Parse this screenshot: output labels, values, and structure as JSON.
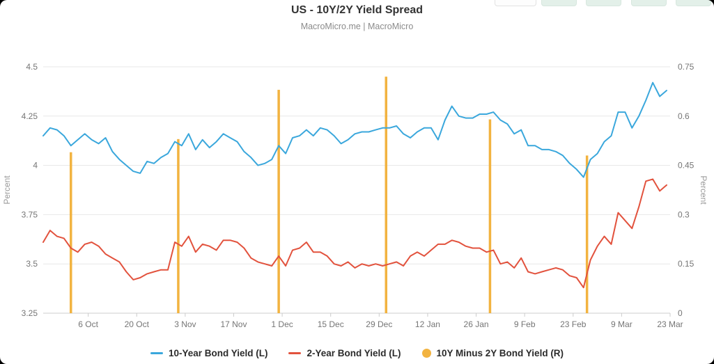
{
  "chart_data": {
    "type": "line",
    "title": "US - 10Y/2Y Yield Spread",
    "subtitle": "MacroMicro.me | MacroMicro",
    "left_axis": {
      "label": "Percent",
      "min": 3.25,
      "max": 4.5,
      "ticks": [
        "4.5",
        "4.25",
        "4",
        "3.75",
        "3.5",
        "3.25"
      ]
    },
    "right_axis": {
      "label": "Percent",
      "min": 0,
      "max": 0.75,
      "ticks": [
        "0.75",
        "0.6",
        "0.45",
        "0.3",
        "0.15",
        "0"
      ]
    },
    "x_axis": {
      "tick_labels": [
        "6 Oct",
        "20 Oct",
        "3 Nov",
        "17 Nov",
        "1 Dec",
        "15 Dec",
        "29 Dec",
        "12 Jan",
        "26 Jan",
        "9 Feb",
        "23 Feb",
        "9 Mar",
        "23 Mar"
      ],
      "tick_day_offsets": [
        13,
        27,
        41,
        55,
        69,
        83,
        97,
        111,
        125,
        139,
        153,
        167,
        181
      ],
      "day_span": 181
    },
    "grid": "horizontal-only",
    "legend_position": "bottom-center",
    "series": [
      {
        "name": "10-Year Bond Yield (L)",
        "type": "line",
        "axis": "left",
        "color": "#3aa7dc",
        "day_start": 0,
        "day_step": 2,
        "values": [
          4.15,
          4.19,
          4.18,
          4.15,
          4.1,
          4.13,
          4.16,
          4.13,
          4.11,
          4.14,
          4.07,
          4.03,
          4.0,
          3.97,
          3.96,
          4.02,
          4.01,
          4.04,
          4.06,
          4.12,
          4.1,
          4.16,
          4.08,
          4.13,
          4.09,
          4.12,
          4.16,
          4.14,
          4.12,
          4.07,
          4.04,
          4.0,
          4.01,
          4.03,
          4.1,
          4.06,
          4.14,
          4.15,
          4.18,
          4.15,
          4.19,
          4.18,
          4.15,
          4.11,
          4.13,
          4.16,
          4.17,
          4.17,
          4.18,
          4.19,
          4.19,
          4.2,
          4.16,
          4.14,
          4.17,
          4.19,
          4.19,
          4.13,
          4.23,
          4.3,
          4.25,
          4.24,
          4.24,
          4.26,
          4.26,
          4.27,
          4.23,
          4.21,
          4.16,
          4.18,
          4.1,
          4.1,
          4.08,
          4.08,
          4.07,
          4.05,
          4.01,
          3.98,
          3.94,
          4.03,
          4.06,
          4.12,
          4.15,
          4.27,
          4.27,
          4.19,
          4.25,
          4.33,
          4.42,
          4.35,
          4.38
        ]
      },
      {
        "name": "2-Year Bond Yield (L)",
        "type": "line",
        "axis": "left",
        "color": "#e2523d",
        "day_start": 0,
        "day_step": 2,
        "values": [
          3.61,
          3.67,
          3.64,
          3.63,
          3.58,
          3.56,
          3.6,
          3.61,
          3.59,
          3.55,
          3.53,
          3.51,
          3.46,
          3.42,
          3.43,
          3.45,
          3.46,
          3.47,
          3.47,
          3.61,
          3.59,
          3.64,
          3.56,
          3.6,
          3.59,
          3.57,
          3.62,
          3.62,
          3.61,
          3.58,
          3.53,
          3.51,
          3.5,
          3.49,
          3.54,
          3.49,
          3.57,
          3.58,
          3.61,
          3.56,
          3.56,
          3.54,
          3.5,
          3.49,
          3.51,
          3.48,
          3.5,
          3.49,
          3.5,
          3.49,
          3.5,
          3.51,
          3.49,
          3.54,
          3.56,
          3.54,
          3.57,
          3.6,
          3.6,
          3.62,
          3.61,
          3.59,
          3.58,
          3.58,
          3.56,
          3.57,
          3.5,
          3.51,
          3.48,
          3.53,
          3.46,
          3.45,
          3.46,
          3.47,
          3.48,
          3.47,
          3.44,
          3.43,
          3.38,
          3.52,
          3.59,
          3.64,
          3.6,
          3.76,
          3.72,
          3.68,
          3.79,
          3.92,
          3.93,
          3.87,
          3.9
        ]
      },
      {
        "name": "10Y Minus 2Y Bond Yield (R)",
        "type": "bar",
        "axis": "right",
        "color": "#f2b340",
        "points": [
          {
            "day": 8,
            "value": 0.49
          },
          {
            "day": 39,
            "value": 0.53
          },
          {
            "day": 68,
            "value": 0.68
          },
          {
            "day": 99,
            "value": 0.72
          },
          {
            "day": 129,
            "value": 0.59
          },
          {
            "day": 157,
            "value": 0.48
          }
        ]
      }
    ]
  },
  "style": {
    "grid_color": "#e7e7e7",
    "axis_line_color": "#cccccc",
    "tick_text_color": "#757575",
    "axis_title_color": "#999999"
  }
}
